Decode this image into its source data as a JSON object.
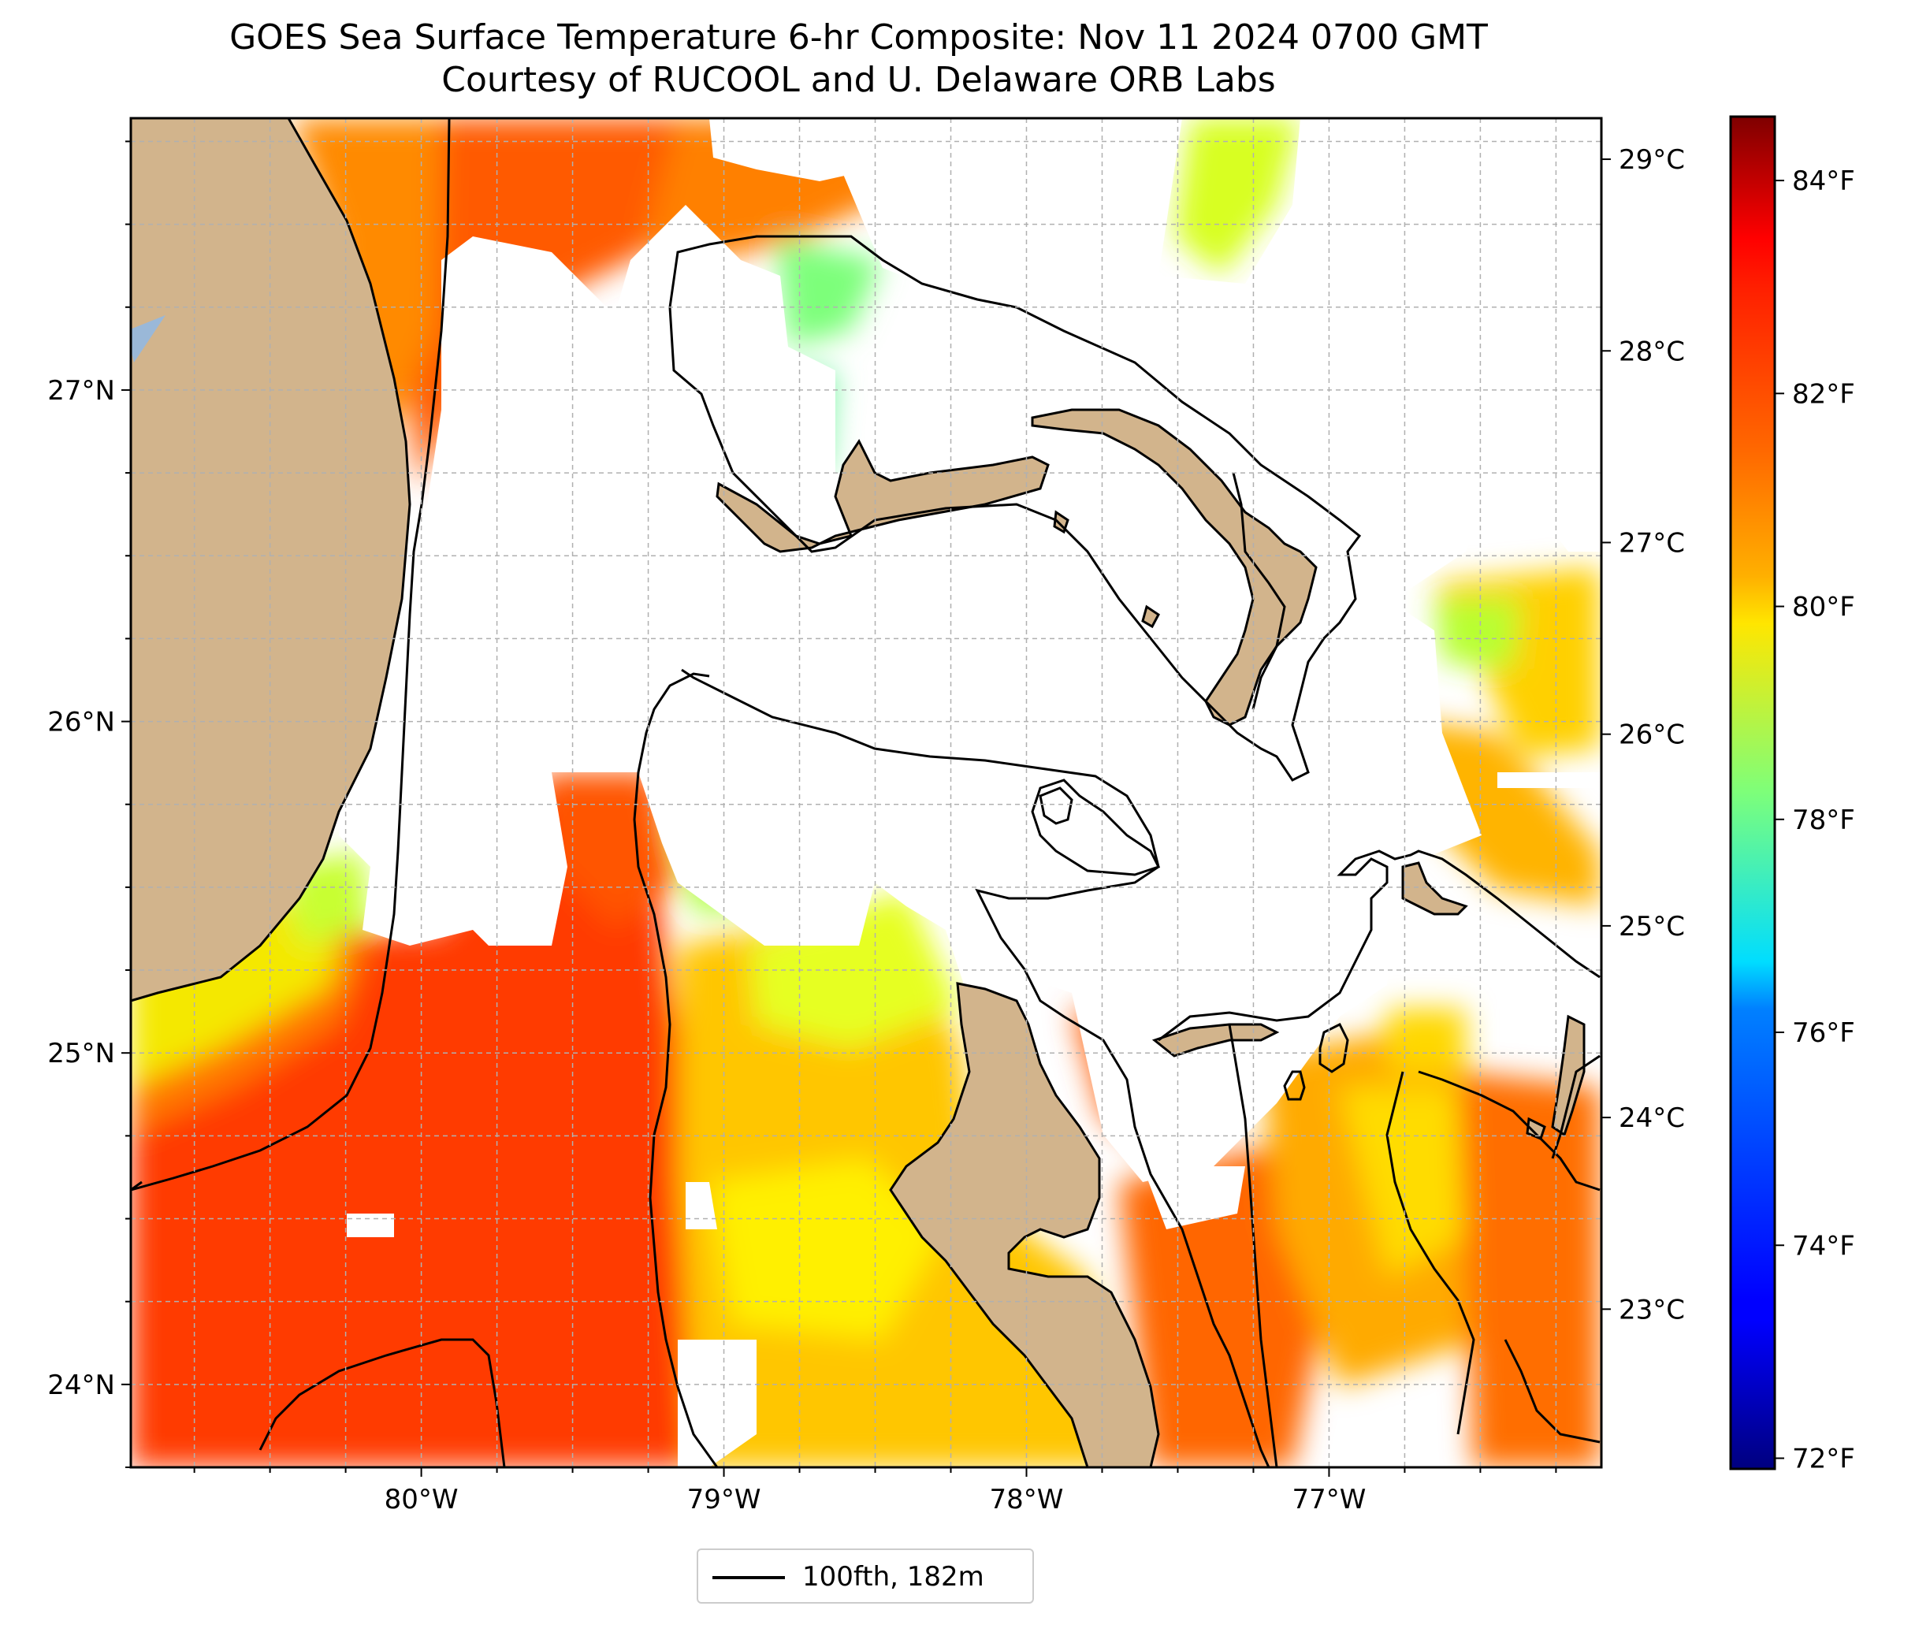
{
  "title": {
    "line1": "GOES Sea Surface Temperature 6-hr Composite: Nov 11 2024 0700 GMT",
    "line2": "Courtesy of RUCOOL and U. Delaware ORB Labs"
  },
  "map": {
    "lon_range": [
      -80.96,
      -76.1
    ],
    "lat_range": [
      23.75,
      27.82
    ],
    "x_ticks": [
      {
        "lon": -80,
        "label": "80°W"
      },
      {
        "lon": -79,
        "label": "79°W"
      },
      {
        "lon": -78,
        "label": "78°W"
      },
      {
        "lon": -77,
        "label": "77°W"
      }
    ],
    "y_ticks": [
      {
        "lat": 24,
        "label": "24°N"
      },
      {
        "lat": 25,
        "label": "25°N"
      },
      {
        "lat": 26,
        "label": "26°N"
      },
      {
        "lat": 27,
        "label": "27°N"
      }
    ],
    "colors": {
      "land": "#d2b48c",
      "cloud_mask": "#ffffff",
      "gridline": "#b0b0b0",
      "contour": "#000000"
    }
  },
  "colorbar": {
    "colormap": "jet",
    "fahrenheit_ticks": [
      {
        "value": 72,
        "label": "72°F"
      },
      {
        "value": 74,
        "label": "74°F"
      },
      {
        "value": 76,
        "label": "76°F"
      },
      {
        "value": 78,
        "label": "78°F"
      },
      {
        "value": 80,
        "label": "80°F"
      },
      {
        "value": 82,
        "label": "82°F"
      },
      {
        "value": 84,
        "label": "84°F"
      }
    ],
    "celsius_ticks": [
      {
        "value": 23,
        "label": "23°C"
      },
      {
        "value": 24,
        "label": "24°C"
      },
      {
        "value": 25,
        "label": "25°C"
      },
      {
        "value": 26,
        "label": "26°C"
      },
      {
        "value": 27,
        "label": "27°C"
      },
      {
        "value": 28,
        "label": "28°C"
      },
      {
        "value": 29,
        "label": "29°C"
      }
    ],
    "range_f": [
      71.9,
      84.6
    ]
  },
  "legend": {
    "label": "100fth, 182m"
  }
}
